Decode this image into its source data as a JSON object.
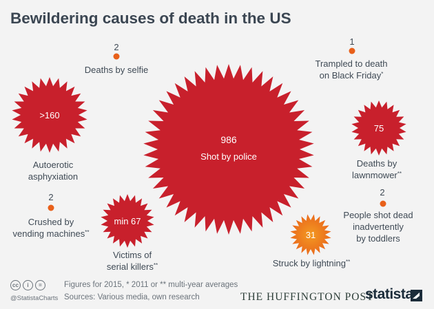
{
  "title": "Bewildering causes of death in the US",
  "colors": {
    "red": "#c8202c",
    "orange": "#e8601a",
    "orange_light": "#f39a22",
    "text": "#3f4a55"
  },
  "chart_data": {
    "type": "bubble",
    "title": "Bewildering causes of death in the US",
    "items": [
      {
        "key": "police",
        "value": 986,
        "value_label": "986",
        "label_lines": [
          "Shot by police"
        ],
        "color": "red",
        "style": "burst"
      },
      {
        "key": "auto",
        "value": 160,
        "value_label": ">160",
        "label_lines": [
          "Autoerotic",
          "asphyxiation"
        ],
        "color": "red",
        "style": "burst"
      },
      {
        "key": "lawn",
        "value": 75,
        "value_label": "75",
        "label_lines": [
          "Deaths by",
          "lawnmower**"
        ],
        "color": "red",
        "style": "burst"
      },
      {
        "key": "serial",
        "value": 67,
        "value_label": "min 67",
        "label_lines": [
          "Victims of",
          "serial killers**"
        ],
        "color": "red",
        "style": "burst"
      },
      {
        "key": "lightning",
        "value": 31,
        "value_label": "31",
        "label_lines": [
          "Struck by lightning**"
        ],
        "color": "orange",
        "style": "burst"
      },
      {
        "key": "selfie",
        "value": 2,
        "value_label": "2",
        "label_lines": [
          "Deaths by selfie"
        ],
        "color": "orange",
        "style": "dot"
      },
      {
        "key": "vending",
        "value": 2,
        "value_label": "2",
        "label_lines": [
          "Crushed by",
          "vending machines**"
        ],
        "color": "orange",
        "style": "dot"
      },
      {
        "key": "toddlers",
        "value": 2,
        "value_label": "2",
        "label_lines": [
          "People shot dead",
          "inadvertently",
          "by toddlers"
        ],
        "color": "orange",
        "style": "dot"
      },
      {
        "key": "friday",
        "value": 1,
        "value_label": "1",
        "label_lines": [
          "Trampled to death",
          "on Black Friday*"
        ],
        "color": "orange",
        "style": "dot"
      }
    ]
  },
  "footer": {
    "note": "Figures for 2015, * 2011 or ** multi-year averages",
    "sources": "Sources: Various media, own research",
    "handle": "@StatistaCharts",
    "partner": "THE HUFFINGTON POST",
    "brand": "statista",
    "cc_icons": [
      "cc-icon",
      "by-icon",
      "equals-icon"
    ]
  }
}
